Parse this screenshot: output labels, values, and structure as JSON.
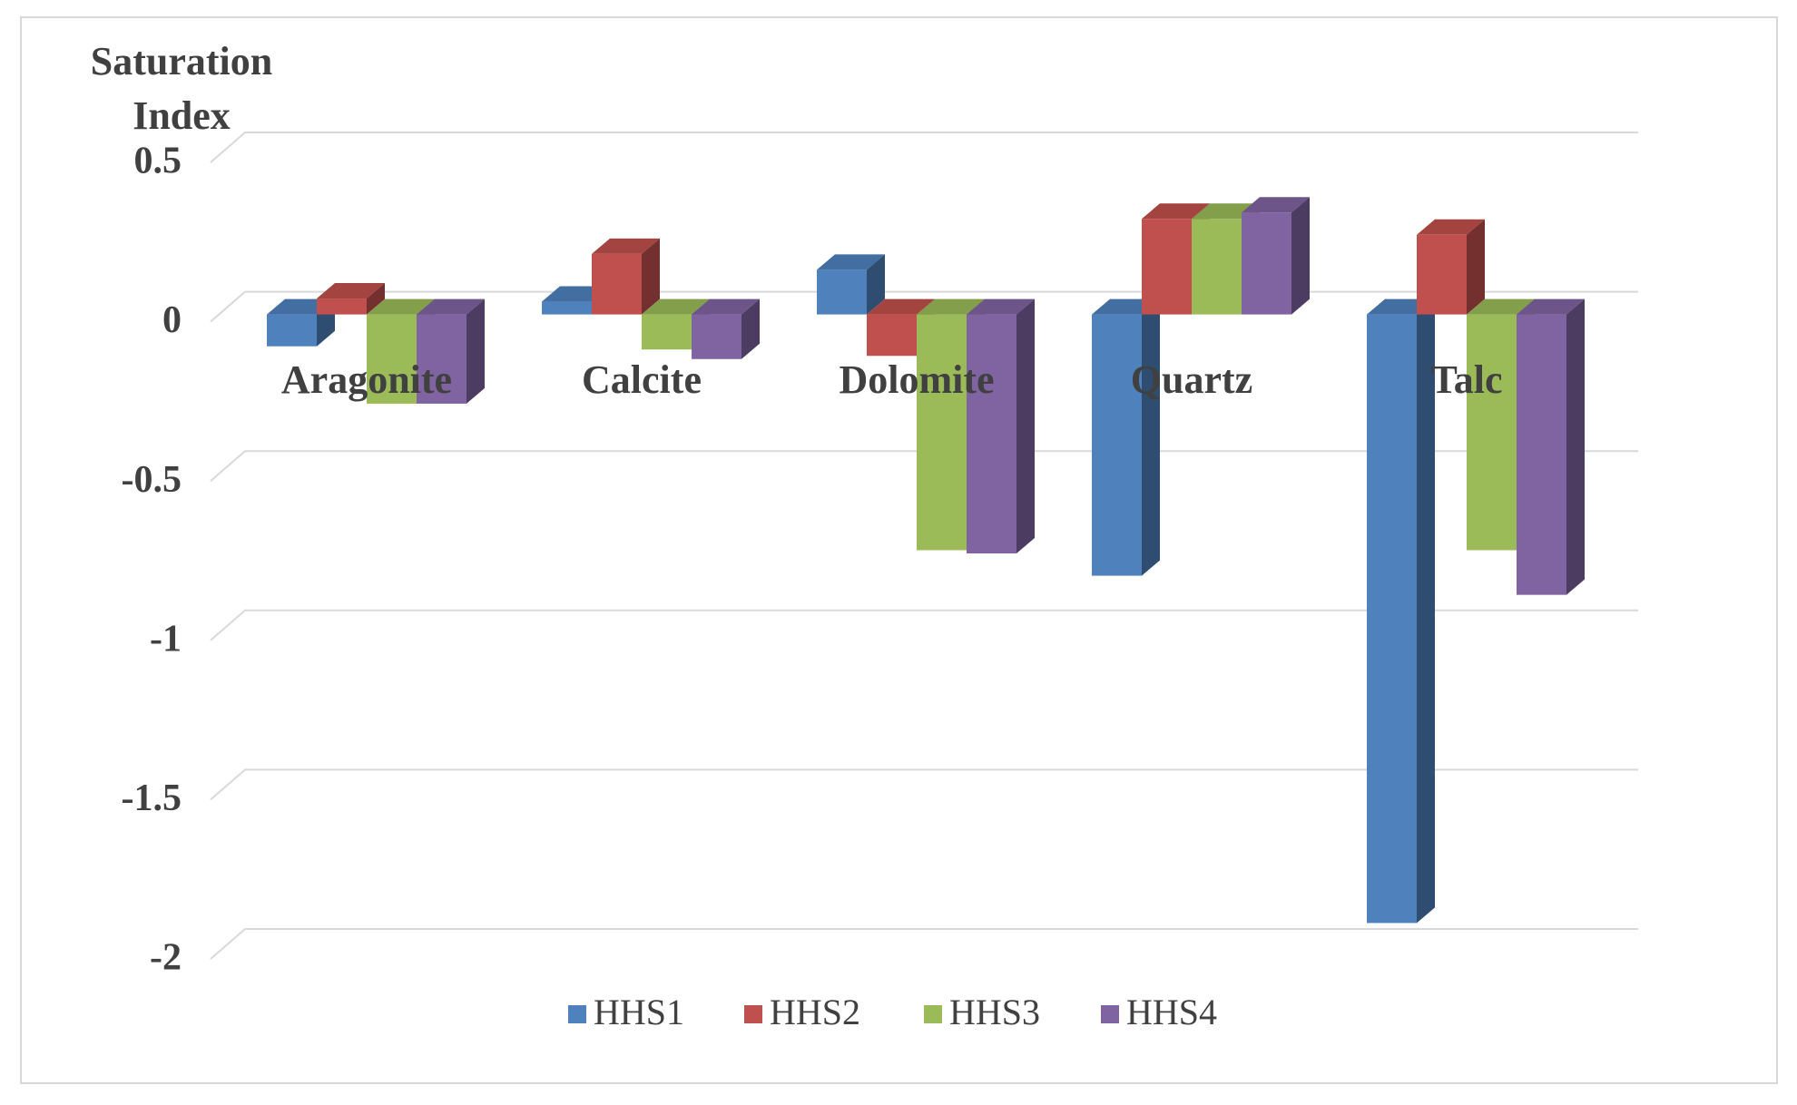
{
  "chart_data": {
    "type": "bar3d",
    "y_label": "Saturation Index",
    "categories": [
      "Aragonite",
      "Calcite",
      "Dolomite",
      "Quartz",
      "Talc"
    ],
    "series": [
      {
        "name": "HHS1",
        "color": "#4f81bd",
        "values": [
          -0.1,
          0.04,
          0.14,
          -0.82,
          -1.91
        ]
      },
      {
        "name": "HHS2",
        "color": "#c0504d",
        "values": [
          0.05,
          0.19,
          -0.13,
          0.3,
          0.25
        ]
      },
      {
        "name": "HHS3",
        "color": "#9bbb59",
        "values": [
          -0.28,
          -0.11,
          -0.74,
          0.3,
          -0.74
        ]
      },
      {
        "name": "HHS4",
        "color": "#8064a2",
        "values": [
          -0.28,
          -0.14,
          -0.75,
          0.32,
          -0.88
        ]
      }
    ],
    "ylim": [
      -2,
      0.5
    ],
    "yticks": [
      -2,
      -1.5,
      -1,
      -0.5,
      0,
      0.5
    ],
    "grid": true
  }
}
